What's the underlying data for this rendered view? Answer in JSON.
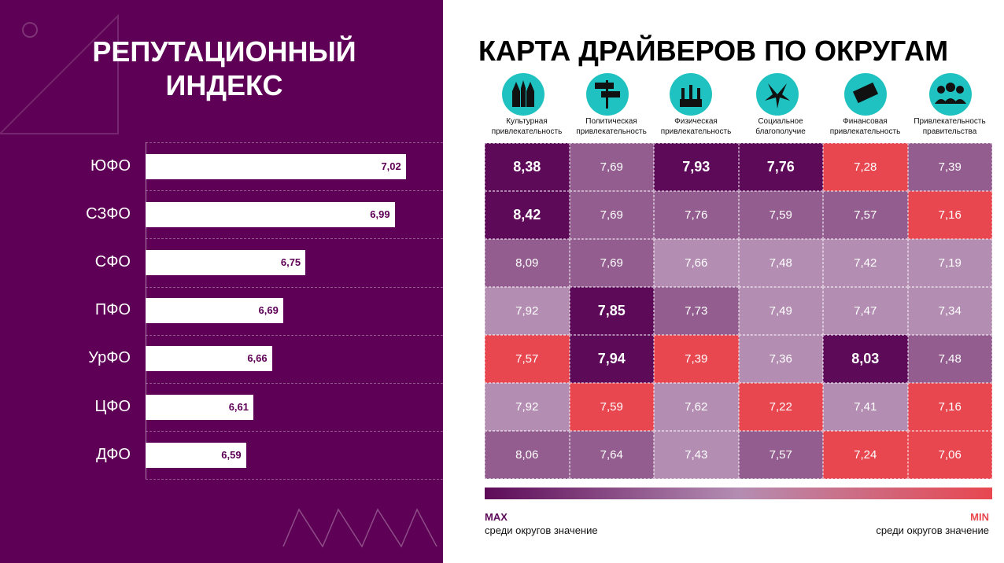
{
  "chart_data": [
    {
      "type": "bar",
      "title": "РЕПУТАЦИОННЫЙ ИНДЕКС",
      "categories": [
        "ЮФО",
        "СЗФО",
        "СФО",
        "ПФО",
        "УрФО",
        "ЦФО",
        "ДФО"
      ],
      "values": [
        7.02,
        6.99,
        6.75,
        6.69,
        6.66,
        6.61,
        6.59
      ],
      "value_labels": [
        "7,02",
        "6,99",
        "6,75",
        "6,69",
        "6,66",
        "6,61",
        "6,59"
      ],
      "xlim": [
        6.32,
        7.12
      ],
      "color": "#ffffff",
      "label_color": "#5e0055",
      "background": "#5e0055",
      "grid": true
    },
    {
      "type": "heatmap",
      "title": "КАРТА ДРАЙВЕРОВ ПО ОКРУГАМ",
      "columns": [
        "Культурная привлекательность",
        "Политическая привлекательность",
        "Физическая привлекательность",
        "Социальное благополучие",
        "Финансовая привлекательность",
        "Привлекательность правительства"
      ],
      "values": [
        [
          8.38,
          7.69,
          7.93,
          7.76,
          7.28,
          7.39
        ],
        [
          8.42,
          7.69,
          7.76,
          7.59,
          7.57,
          7.16
        ],
        [
          8.09,
          7.69,
          7.66,
          7.48,
          7.42,
          7.19
        ],
        [
          7.92,
          7.85,
          7.73,
          7.49,
          7.47,
          7.34
        ],
        [
          7.57,
          7.94,
          7.39,
          7.36,
          8.03,
          7.48
        ],
        [
          7.92,
          7.59,
          7.62,
          7.22,
          7.41,
          7.16
        ],
        [
          8.06,
          7.64,
          7.43,
          7.57,
          7.24,
          7.06
        ]
      ],
      "value_labels": [
        [
          "8,38",
          "7,69",
          "7,93",
          "7,76",
          "7,28",
          "7,39"
        ],
        [
          "8,42",
          "7,69",
          "7,76",
          "7,59",
          "7,57",
          "7,16"
        ],
        [
          "8,09",
          "7,69",
          "7,66",
          "7,48",
          "7,42",
          "7,19"
        ],
        [
          "7,92",
          "7,85",
          "7,73",
          "7,49",
          "7,47",
          "7,34"
        ],
        [
          "7,57",
          "7,94",
          "7,39",
          "7,36",
          "8,03",
          "7,48"
        ],
        [
          "7,92",
          "7,59",
          "7,62",
          "7,22",
          "7,41",
          "7,16"
        ],
        [
          "8,06",
          "7,64",
          "7,43",
          "7,57",
          "7,24",
          "7,06"
        ]
      ],
      "colors": [
        [
          "#5d0b58",
          "#935e8f",
          "#5d0b58",
          "#5d0b58",
          "#e8474f",
          "#935e8f"
        ],
        [
          "#5d0b58",
          "#935e8f",
          "#935e8f",
          "#935e8f",
          "#935e8f",
          "#e8474f"
        ],
        [
          "#935e8f",
          "#935e8f",
          "#b48db2",
          "#b48db2",
          "#b48db2",
          "#b48db2"
        ],
        [
          "#b48db2",
          "#5d0b58",
          "#935e8f",
          "#b48db2",
          "#b48db2",
          "#b48db2"
        ],
        [
          "#e8474f",
          "#5d0b58",
          "#e8474f",
          "#b48db2",
          "#5d0b58",
          "#935e8f"
        ],
        [
          "#b48db2",
          "#e8474f",
          "#b48db2",
          "#e8474f",
          "#b48db2",
          "#e8474f"
        ],
        [
          "#935e8f",
          "#935e8f",
          "#b48db2",
          "#935e8f",
          "#e8474f",
          "#e8474f"
        ]
      ],
      "bold_color": "#5d0b58",
      "legend": {
        "max_label": "MAX",
        "max_note": "среди округов значение",
        "min_label": "MIN",
        "min_note": "среди округов значение",
        "gradient": [
          "#5d0b58",
          "#b48db2",
          "#e8474f"
        ]
      }
    }
  ]
}
